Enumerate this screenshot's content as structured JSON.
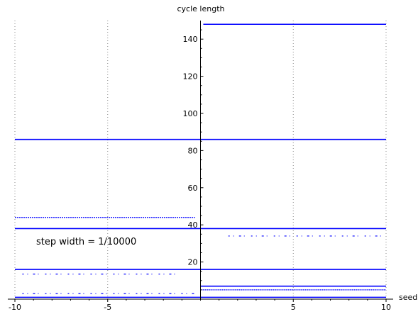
{
  "chart_data": {
    "type": "scatter",
    "title": "",
    "xlabel": "seed",
    "ylabel": "cycle length",
    "xlim": [
      -10,
      10
    ],
    "ylim": [
      0,
      150
    ],
    "grid": "vertical dotted",
    "color": "#0000ff",
    "xticks": [
      {
        "value": -10,
        "label": "-10"
      },
      {
        "value": -5,
        "label": "-5"
      },
      {
        "value": 5,
        "label": "5"
      },
      {
        "value": 10,
        "label": "10"
      }
    ],
    "yticks": [
      {
        "value": 20,
        "label": "20"
      },
      {
        "value": 40,
        "label": "40"
      },
      {
        "value": 60,
        "label": "60"
      },
      {
        "value": 80,
        "label": "80"
      },
      {
        "value": 100,
        "label": "100"
      },
      {
        "value": 120,
        "label": "120"
      },
      {
        "value": 140,
        "label": "140"
      }
    ],
    "annotation": "step width = 1/10000",
    "series": [
      {
        "y": 148,
        "x_start": 0.15,
        "x_end": 10,
        "style": "solid"
      },
      {
        "y": 86,
        "x_start": -10,
        "x_end": 10,
        "style": "solid"
      },
      {
        "y": 44,
        "x_start": -10,
        "x_end": -0.3,
        "style": "dense"
      },
      {
        "y": 38,
        "x_start": -10,
        "x_end": 10,
        "style": "solid"
      },
      {
        "y": 34,
        "x_start": 1.5,
        "x_end": 10,
        "style": "sparse"
      },
      {
        "y": 16,
        "x_start": -10,
        "x_end": 10,
        "style": "solid"
      },
      {
        "y": 13.5,
        "x_start": -9.6,
        "x_end": -1.1,
        "style": "sparse"
      },
      {
        "y": 7,
        "x_start": 0,
        "x_end": 10,
        "style": "solid"
      },
      {
        "y": 5,
        "x_start": 0,
        "x_end": 10,
        "style": "dense"
      },
      {
        "y": 3,
        "x_start": -9.6,
        "x_end": -0.3,
        "style": "sparse"
      },
      {
        "y": 1,
        "x_start": -10,
        "x_end": 10,
        "style": "solid"
      }
    ]
  }
}
